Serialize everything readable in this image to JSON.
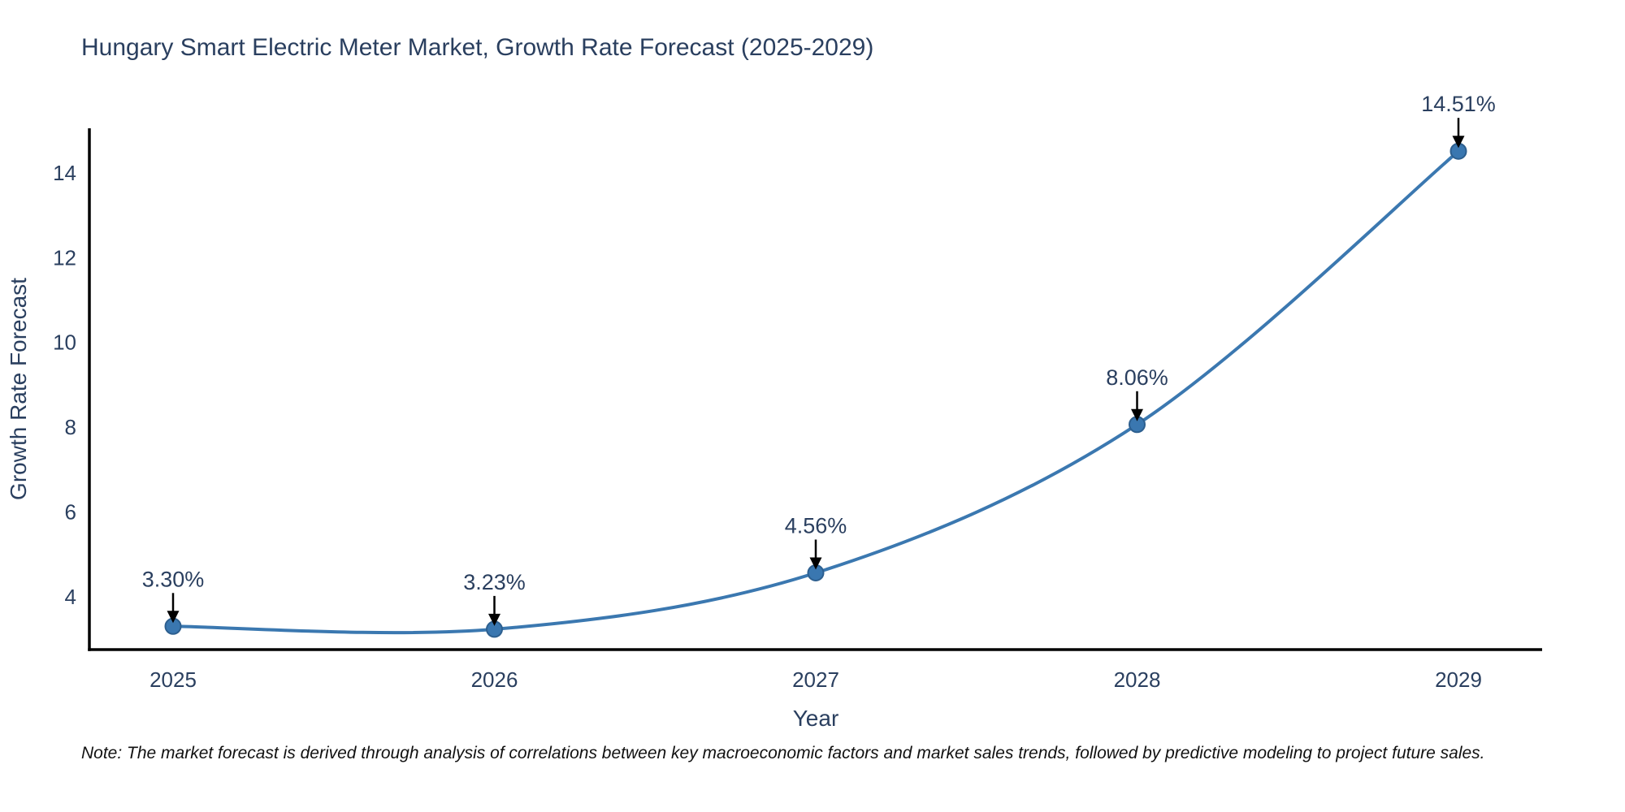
{
  "title": "Hungary Smart Electric Meter Market, Growth Rate Forecast (2025-2029)",
  "note": "Note: The market forecast is derived through analysis of correlations between key macroeconomic factors and market sales trends, followed by predictive modeling to project future sales.",
  "chart_data": {
    "type": "line",
    "title": "Hungary Smart Electric Meter Market, Growth Rate Forecast (2025-2029)",
    "xlabel": "Year",
    "ylabel": "Growth Rate Forecast",
    "categories": [
      "2025",
      "2026",
      "2027",
      "2028",
      "2029"
    ],
    "series": [
      {
        "name": "Growth Rate Forecast",
        "values": [
          3.3,
          3.23,
          4.56,
          8.06,
          14.51
        ],
        "point_labels": [
          "3.30%",
          "3.23%",
          "4.56%",
          "8.06%",
          "14.51%"
        ]
      }
    ],
    "yticks": [
      4,
      6,
      8,
      10,
      12,
      14
    ],
    "ylim": [
      2.75,
      15.05
    ],
    "grid": false,
    "legend": "none",
    "curve": "spline",
    "colors": {
      "line": "#3b78b0",
      "marker_fill": "#3a77b0",
      "marker_edge": "#2d5f8f",
      "axis": "#000000",
      "chart_text": "#2a3f5f",
      "annotation_text": "#2a3f5f",
      "arrow": "#000000",
      "note_text": "#111111"
    }
  }
}
